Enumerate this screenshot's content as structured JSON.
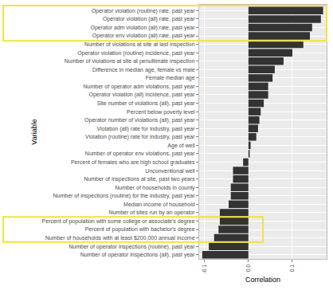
{
  "chart_data": {
    "type": "bar",
    "orientation": "horizontal",
    "x_label": "Correlation",
    "y_label": "Variable",
    "categories": [
      "Operator violation (routine) rate, past year",
      "Operator violation (all) rate, past year",
      "Operator adm violation (all) rate, past year",
      "Operator env violation (all) rate, past year",
      "Number of violations at site at last inspection",
      "Operator violation (routine) incidence, past year",
      "Number of violations at site at penultimate inspection",
      "Difference in median age, female vs male",
      "Female median age",
      "Number of operator adm violations, past year",
      "Operator violation (all) incidence, past year",
      "Site number of violations (all), past year",
      "Percent below poverty level",
      "Operator number of violations (all), past year",
      "Violation (all) rate for industry, past year",
      "Violation (routine) rate for industry, past year",
      "Age of well",
      "Number of operator env violations, past year",
      "Percent of females who are high school graduates",
      "Unconventional well",
      "Number of inspections at site, past two years",
      "Number of households in county",
      "Number of inspections (routine) for the industry, past year",
      "Median income of household",
      "Number of sites run by an operator",
      "Percent of population with some college or associate's degree",
      "Percent of population with bachelor's degree",
      "Number of households with at least $200,000 annual income",
      "Number of operator inspections (routine), past year",
      "Number of operator inspections (all), past year"
    ],
    "values": [
      0.17,
      0.165,
      0.145,
      0.14,
      0.125,
      0.1,
      0.08,
      0.06,
      0.055,
      0.045,
      0.045,
      0.035,
      0.028,
      0.025,
      0.022,
      0.018,
      0.005,
      0.003,
      -0.012,
      -0.035,
      -0.035,
      -0.04,
      -0.04,
      -0.045,
      -0.065,
      -0.065,
      -0.068,
      -0.078,
      -0.09,
      -0.105
    ],
    "color": "#333333",
    "xlim": [
      -0.112,
      0.178
    ],
    "xticks": [
      -0.1,
      {
        "value": 0,
        "label": "0.0"
      },
      0.1
    ],
    "grid": true
  }
}
